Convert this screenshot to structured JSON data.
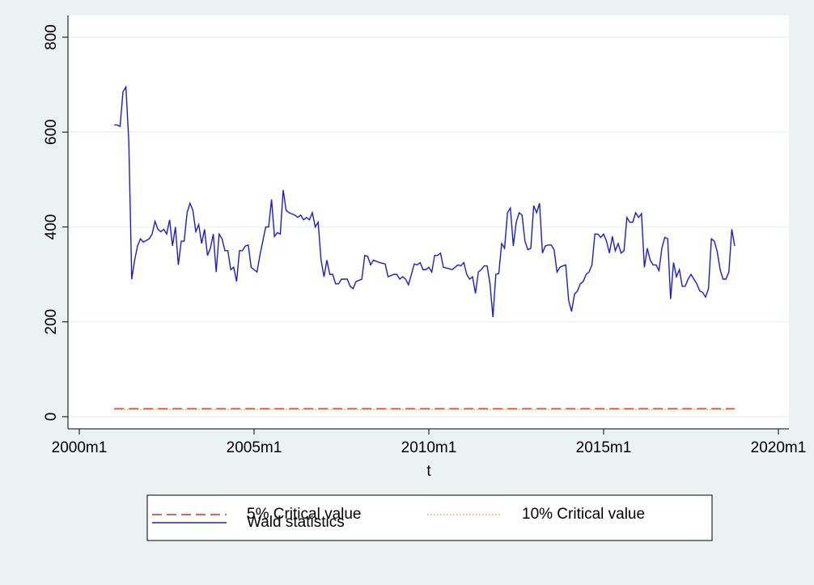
{
  "chart_data": {
    "type": "line",
    "xlabel": "t",
    "xlim": [
      480,
      720
    ],
    "ylim": [
      0,
      800
    ],
    "xticks": [
      {
        "value": 480,
        "label": "2000m1"
      },
      {
        "value": 540,
        "label": "2005m1"
      },
      {
        "value": 600,
        "label": "2010m1"
      },
      {
        "value": 660,
        "label": "2015m1"
      },
      {
        "value": 720,
        "label": "2020m1"
      }
    ],
    "yticks": [
      0,
      200,
      400,
      600,
      800
    ],
    "grid": true,
    "series": [
      {
        "name": "5% Critical value",
        "color": "#e8291c",
        "dash": "dashed",
        "x": [
          492,
          705
        ],
        "values": [
          17,
          17
        ]
      },
      {
        "name": "10% Critical value",
        "color": "#e8a040",
        "dash": "dotted",
        "x": [
          492,
          705
        ],
        "values": [
          15,
          15
        ]
      },
      {
        "name": "Wald statistics",
        "color": "#1a1adc",
        "dash": "solid",
        "x": [
          492,
          493,
          494,
          495,
          496,
          497,
          498,
          499,
          500,
          501,
          502,
          504,
          505,
          506,
          507,
          508,
          509,
          510,
          511,
          512,
          513,
          514,
          515,
          516,
          517,
          518,
          519,
          520,
          521,
          522,
          523,
          524,
          525,
          526,
          527,
          528,
          529,
          530,
          531,
          532,
          533,
          534,
          535,
          536,
          537,
          538,
          539,
          540,
          541,
          542,
          543,
          544,
          545,
          546,
          547,
          548,
          549,
          550,
          551,
          552,
          554,
          555,
          556,
          557,
          558,
          559,
          560,
          561,
          562,
          563,
          564,
          565,
          566,
          567,
          568,
          569,
          570,
          572,
          573,
          574,
          575,
          577,
          578,
          579,
          580,
          581,
          583,
          585,
          586,
          588,
          589,
          590,
          591,
          592,
          593,
          594,
          595,
          596,
          597,
          598,
          599,
          600,
          601,
          602,
          603,
          604,
          605,
          607,
          608,
          609,
          610,
          611,
          612,
          613,
          614,
          615,
          616,
          617,
          618,
          619,
          620,
          621,
          622,
          623,
          624,
          625,
          626,
          627,
          628,
          629,
          630,
          631,
          632,
          633,
          634,
          635,
          636,
          637,
          638,
          639,
          640,
          641,
          642,
          643,
          644,
          645,
          646,
          647,
          648,
          649,
          650,
          651,
          652,
          653,
          654,
          655,
          656,
          657,
          658,
          659,
          660,
          661,
          662,
          663,
          664,
          665,
          666,
          667,
          668,
          669,
          670,
          671,
          672,
          673,
          674,
          675,
          676,
          677,
          678,
          679,
          680,
          681,
          682,
          683,
          684,
          685,
          686,
          687,
          688,
          689,
          690,
          691,
          692,
          693,
          694,
          695,
          696,
          697,
          698,
          699,
          700,
          701,
          702,
          703,
          704,
          705
        ],
        "values": [
          615,
          615,
          612,
          685,
          695,
          580,
          290,
          330,
          360,
          375,
          368,
          375,
          385,
          412,
          395,
          390,
          395,
          385,
          415,
          360,
          400,
          320,
          370,
          370,
          430,
          450,
          435,
          390,
          405,
          365,
          395,
          340,
          355,
          385,
          305,
          385,
          375,
          350,
          350,
          310,
          315,
          285,
          350,
          350,
          360,
          362,
          315,
          310,
          305,
          340,
          370,
          400,
          400,
          458,
          380,
          388,
          385,
          478,
          435,
          430,
          425,
          420,
          425,
          415,
          420,
          415,
          430,
          400,
          410,
          330,
          295,
          330,
          300,
          300,
          280,
          280,
          290,
          290,
          275,
          270,
          285,
          290,
          340,
          338,
          320,
          330,
          325,
          322,
          295,
          300,
          300,
          290,
          295,
          290,
          278,
          300,
          322,
          320,
          325,
          310,
          310,
          315,
          305,
          340,
          340,
          345,
          315,
          312,
          310,
          315,
          320,
          318,
          325,
          300,
          290,
          295,
          260,
          305,
          310,
          318,
          318,
          280,
          210,
          300,
          302,
          365,
          355,
          430,
          440,
          360,
          410,
          430,
          425,
          370,
          352,
          355,
          445,
          430,
          450,
          345,
          360,
          362,
          362,
          352,
          305,
          315,
          318,
          320,
          245,
          222,
          258,
          265,
          280,
          285,
          300,
          305,
          320,
          385,
          385,
          378,
          385,
          370,
          345,
          380,
          350,
          365,
          345,
          350,
          420,
          410,
          410,
          430,
          420,
          428,
          315,
          355,
          330,
          320,
          320,
          308,
          355,
          378,
          375,
          248,
          325,
          295,
          310,
          275,
          275,
          290,
          300,
          290,
          280,
          265,
          262,
          252,
          270,
          375,
          370,
          348,
          310,
          290,
          290,
          305,
          395,
          360
        ]
      }
    ]
  }
}
